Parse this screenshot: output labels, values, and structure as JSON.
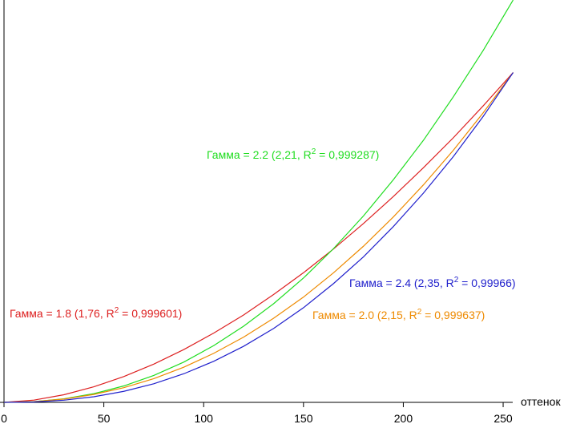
{
  "chart_data": {
    "type": "line",
    "xlabel": "оттенок",
    "x": [
      0,
      15,
      30,
      45,
      60,
      75,
      90,
      105,
      120,
      135,
      150,
      165,
      180,
      195,
      210,
      225,
      240,
      255
    ],
    "xlim": [
      0,
      255
    ],
    "xticks": [
      0,
      50,
      100,
      150,
      200,
      250
    ],
    "ylim": [
      0,
      1.22
    ],
    "series": [
      {
        "name": "Гамма = 1.8",
        "color": "#dd2020",
        "values": [
          0,
          0.0068,
          0.0231,
          0.0472,
          0.0783,
          0.116,
          0.16,
          0.21,
          0.265,
          0.327,
          0.393,
          0.465,
          0.542,
          0.624,
          0.711,
          0.802,
          0.899,
          1
        ]
      },
      {
        "name": "Гамма = 2.2",
        "color": "#20dd20",
        "values": [
          0,
          0.0023,
          0.0108,
          0.0264,
          0.0498,
          0.0816,
          0.122,
          0.172,
          0.231,
          0.299,
          0.377,
          0.466,
          0.565,
          0.675,
          0.794,
          0.926,
          1.067,
          1.22
        ]
      },
      {
        "name": "Гамма = 2.0",
        "color": "#ee8a00",
        "values": [
          0,
          0.0023,
          0.01,
          0.024,
          0.0446,
          0.0719,
          0.1066,
          0.1485,
          0.1977,
          0.2549,
          0.3192,
          0.3926,
          0.4733,
          0.5621,
          0.659,
          0.764,
          0.878,
          1
        ]
      },
      {
        "name": "Гамма = 2.4",
        "color": "#2020cc",
        "values": [
          0,
          0.0013,
          0.0065,
          0.017,
          0.0334,
          0.0564,
          0.0866,
          0.1244,
          0.17,
          0.224,
          0.287,
          0.36,
          0.441,
          0.533,
          0.634,
          0.745,
          0.867,
          1
        ]
      }
    ],
    "annotations": [
      {
        "text": [
          "Гамма = 1.8 (1,76, R",
          "2",
          " = 0,999601)"
        ],
        "color": "#dd2020"
      },
      {
        "text": [
          "Гамма = 2.2 (2,21, R",
          "2",
          " = 0,999287)"
        ],
        "color": "#20dd20"
      },
      {
        "text": [
          "Гамма = 2.0 (2,15, R",
          "2",
          " = 0,999637)"
        ],
        "color": "#ee8a00"
      },
      {
        "text": [
          "Гамма = 2.4 (2,35, R",
          "2",
          " = 0,99966)"
        ],
        "color": "#2020cc"
      }
    ]
  }
}
